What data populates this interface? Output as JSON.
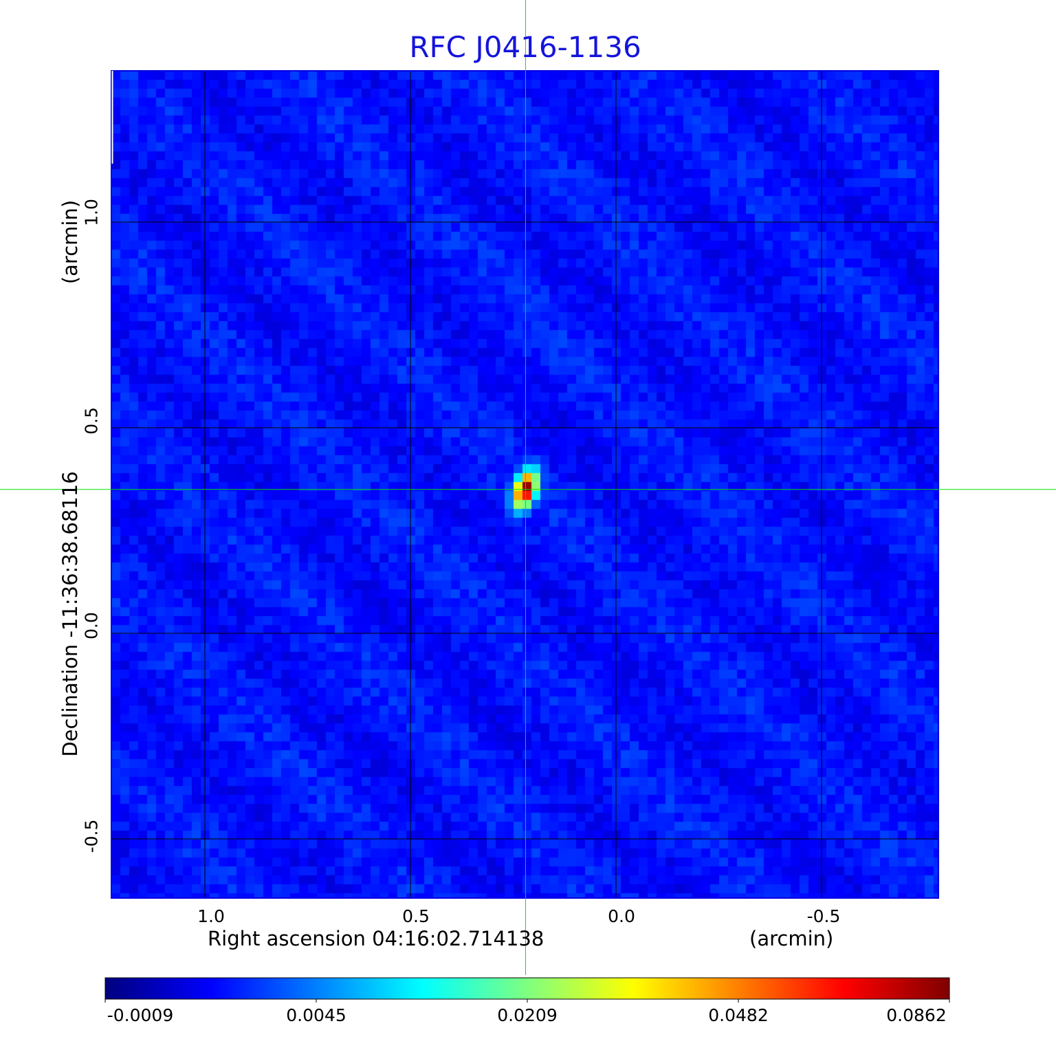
{
  "chart_data": {
    "type": "heatmap",
    "title": "RFC J0416-1136",
    "xlabel": "Right ascension  04:16:02.714138",
    "xunit": "(arcmin)",
    "ylabel": "Declination  -11:36:38.68116",
    "yunit": "(arcmin)",
    "xlim": [
      1.23,
      -0.78
    ],
    "ylim": [
      -0.64,
      1.37
    ],
    "xticks": [
      1.0,
      0.5,
      0.0,
      -0.5
    ],
    "xtick_labels": [
      "1.0",
      "0.5",
      "0.0",
      "-0.5"
    ],
    "yticks": [
      1.0,
      0.5,
      0.0,
      -0.5
    ],
    "ytick_labels": [
      "1.0",
      "0.5",
      "0.0",
      "-0.5"
    ],
    "grid": true,
    "colormap": "jet",
    "colorbar": {
      "placement": "bottom",
      "ticks": [
        -0.0009,
        0.0045,
        0.0209,
        0.0482,
        0.0862
      ],
      "tick_labels": [
        "-0.0009",
        "0.0045",
        "0.0209",
        "0.0482",
        "0.0862"
      ]
    },
    "source": {
      "ra_offset": 0.22,
      "dec_offset": 0.35,
      "peak": 0.0862
    },
    "crosshair": {
      "ra_offset": 0.22,
      "dec_offset": 0.35,
      "color": "#00e000"
    },
    "title_color": "#1414dc"
  }
}
